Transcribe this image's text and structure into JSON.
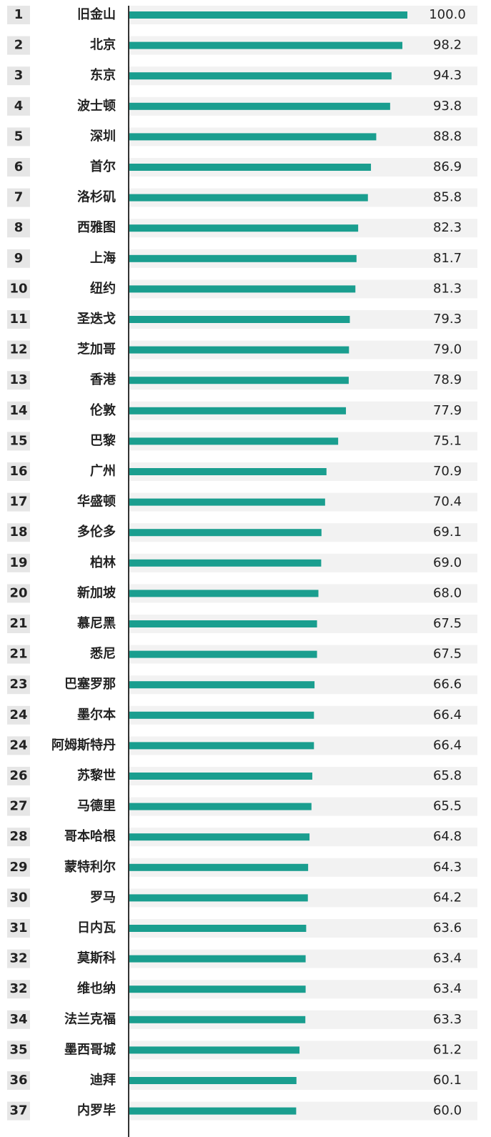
{
  "chart_data": {
    "type": "bar",
    "orientation": "horizontal",
    "ranks": [
      1,
      2,
      3,
      4,
      5,
      6,
      7,
      8,
      9,
      10,
      11,
      12,
      13,
      14,
      15,
      16,
      17,
      18,
      19,
      20,
      21,
      21,
      23,
      24,
      24,
      26,
      27,
      28,
      29,
      30,
      31,
      32,
      32,
      34,
      35,
      36,
      37
    ],
    "categories": [
      "旧金山",
      "北京",
      "东京",
      "波士顿",
      "深圳",
      "首尔",
      "洛杉矶",
      "西雅图",
      "上海",
      "纽约",
      "圣迭戈",
      "芝加哥",
      "香港",
      "伦敦",
      "巴黎",
      "广州",
      "华盛顿",
      "多伦多",
      "柏林",
      "新加坡",
      "慕尼黑",
      "悉尼",
      "巴塞罗那",
      "墨尔本",
      "阿姆斯特丹",
      "苏黎世",
      "马德里",
      "哥本哈根",
      "蒙特利尔",
      "罗马",
      "日内瓦",
      "莫斯科",
      "维也纳",
      "法兰克福",
      "墨西哥城",
      "迪拜",
      "内罗毕"
    ],
    "values": [
      100.0,
      98.2,
      94.3,
      93.8,
      88.8,
      86.9,
      85.8,
      82.3,
      81.7,
      81.3,
      79.3,
      79.0,
      78.9,
      77.9,
      75.1,
      70.9,
      70.4,
      69.1,
      69.0,
      68.0,
      67.5,
      67.5,
      66.6,
      66.4,
      66.4,
      65.8,
      65.5,
      64.8,
      64.3,
      64.2,
      63.6,
      63.4,
      63.4,
      63.3,
      61.2,
      60.1,
      60.0
    ],
    "value_labels": [
      "100.0",
      "98.2",
      "94.3",
      "93.8",
      "88.8",
      "86.9",
      "85.8",
      "82.3",
      "81.7",
      "81.3",
      "79.3",
      "79.0",
      "78.9",
      "77.9",
      "75.1",
      "70.9",
      "70.4",
      "69.1",
      "69.0",
      "68.0",
      "67.5",
      "67.5",
      "66.6",
      "66.4",
      "66.4",
      "65.8",
      "65.5",
      "64.8",
      "64.3",
      "64.2",
      "63.6",
      "63.4",
      "63.4",
      "63.3",
      "61.2",
      "60.1",
      "60.0"
    ],
    "color": "#1a9e8f",
    "xlim": [
      0,
      100
    ]
  }
}
